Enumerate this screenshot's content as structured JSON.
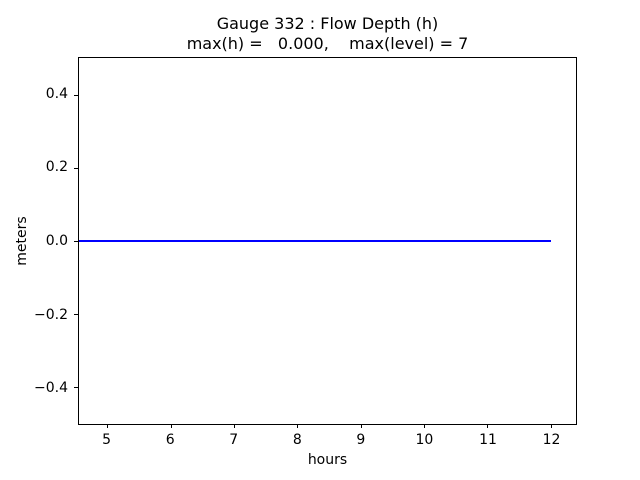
{
  "chart_data": {
    "type": "line",
    "title": "Gauge 332 : Flow Depth (h)",
    "subtitle": "max(h) =   0.000,    max(level) = 7",
    "xlabel": "hours",
    "ylabel": "meters",
    "xlim": [
      4.55,
      12.4
    ],
    "ylim": [
      -0.5,
      0.5
    ],
    "xticks": [
      {
        "v": 5,
        "label": "5"
      },
      {
        "v": 6,
        "label": "6"
      },
      {
        "v": 7,
        "label": "7"
      },
      {
        "v": 8,
        "label": "8"
      },
      {
        "v": 9,
        "label": "9"
      },
      {
        "v": 10,
        "label": "10"
      },
      {
        "v": 11,
        "label": "11"
      },
      {
        "v": 12,
        "label": "12"
      }
    ],
    "yticks": [
      {
        "v": 0.4,
        "label": "0.4"
      },
      {
        "v": 0.2,
        "label": "0.2"
      },
      {
        "v": 0.0,
        "label": "0.0"
      },
      {
        "v": -0.2,
        "label": "−0.2"
      },
      {
        "v": -0.4,
        "label": "−0.4"
      }
    ],
    "grid": false,
    "legend": null,
    "series": [
      {
        "name": "flow-depth-h",
        "color": "#0000ff",
        "x": [
          4.55,
          12.0
        ],
        "y": [
          0.0,
          0.0
        ]
      }
    ]
  },
  "colors": {
    "axis": "#000000",
    "background": "#ffffff",
    "line": "#0000ff"
  }
}
